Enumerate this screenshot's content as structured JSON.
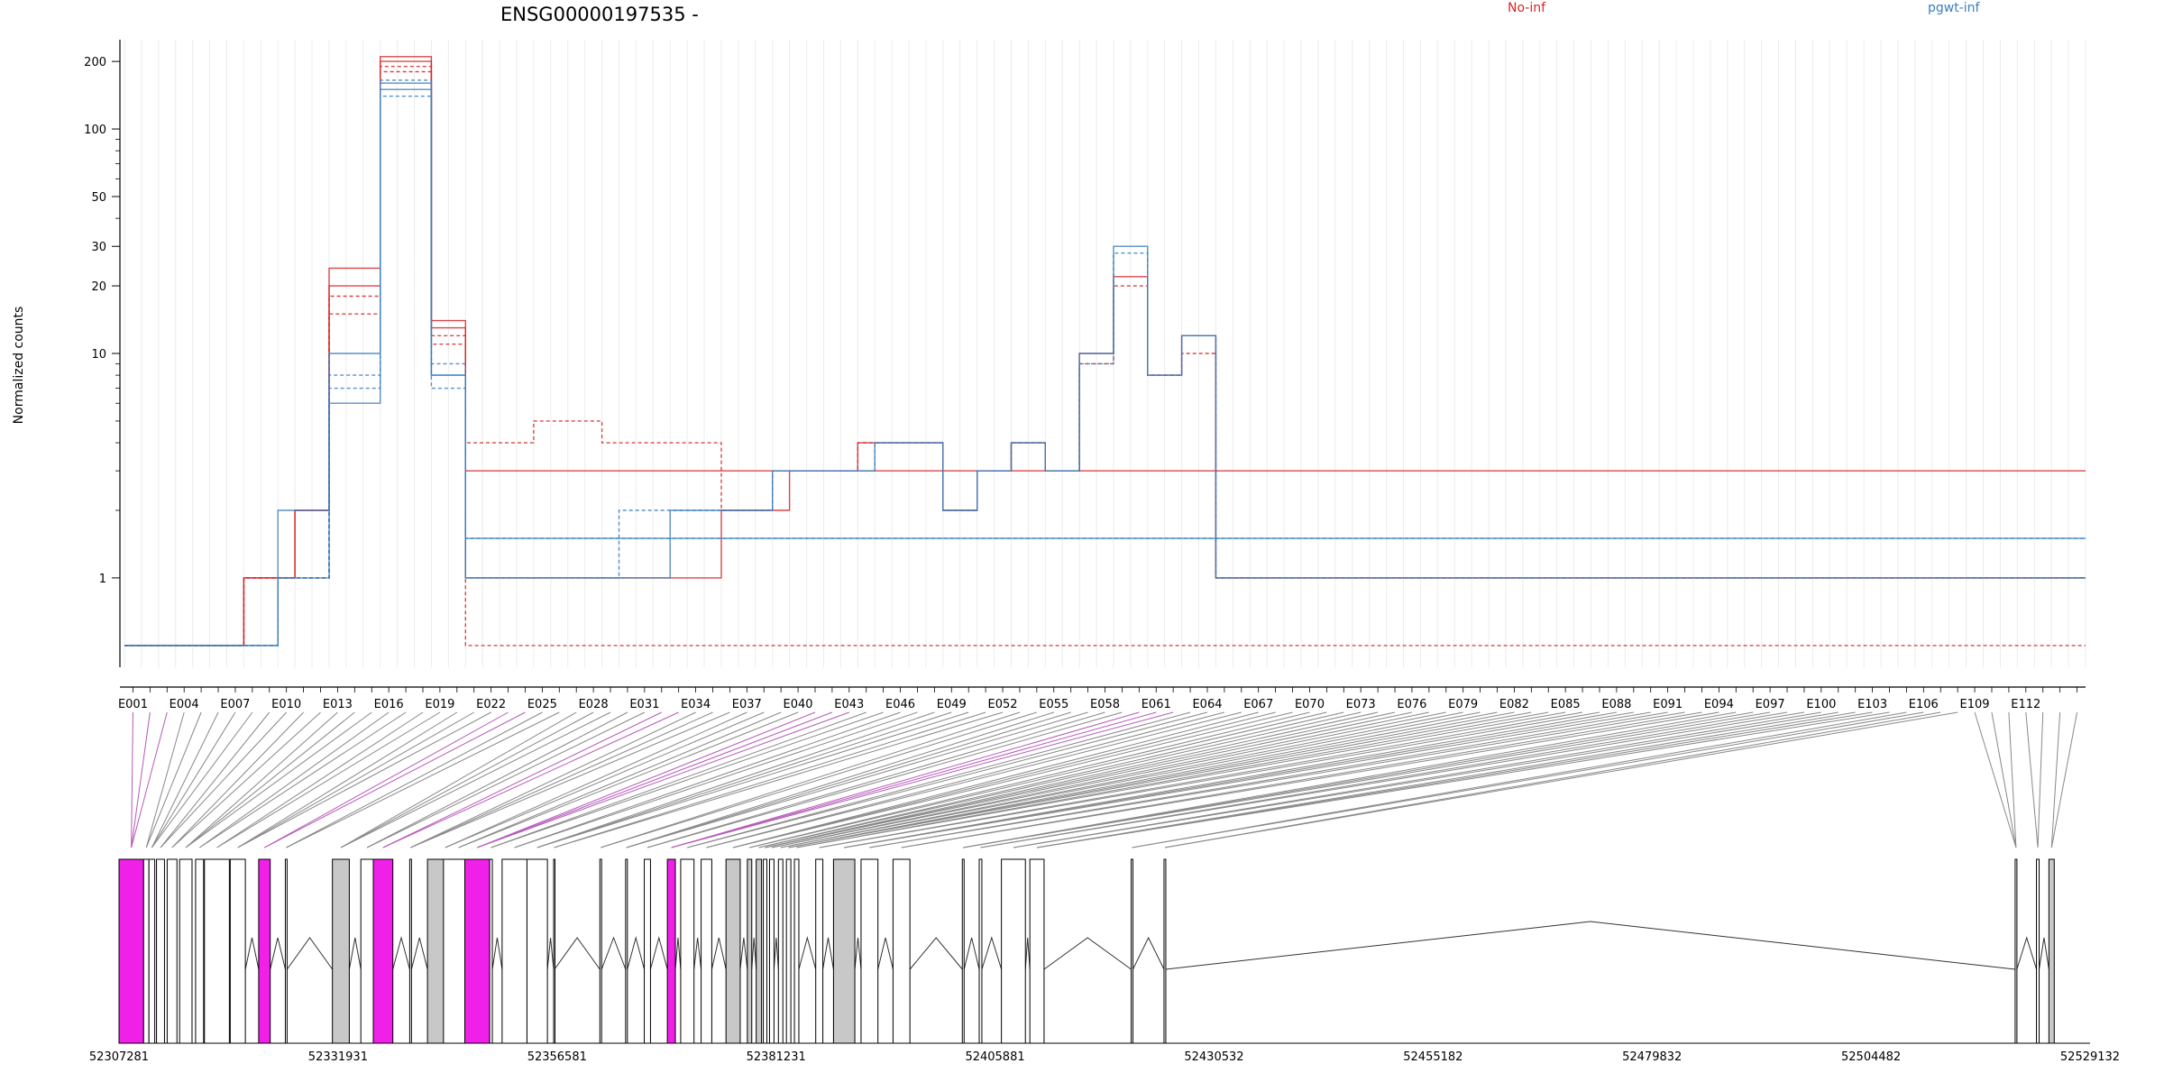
{
  "chart_data": {
    "type": "line",
    "title": "ENSG00000197535 -",
    "xlabel": "",
    "ylabel": "Normalized counts",
    "y_scale": "log",
    "y_ticks": [
      1,
      10,
      20,
      30,
      50,
      100,
      200
    ],
    "exon_labels": [
      "E001",
      "E004",
      "E007",
      "E010",
      "E013",
      "E016",
      "E019",
      "E022",
      "E025",
      "E028",
      "E031",
      "E034",
      "E037",
      "E040",
      "E043",
      "E046",
      "E049",
      "E052",
      "E055",
      "E058",
      "E061",
      "E064",
      "E067",
      "E070",
      "E073",
      "E076",
      "E079",
      "E082",
      "E085",
      "E088",
      "E091",
      "E094",
      "E097",
      "E100",
      "E103",
      "E106",
      "E109",
      "E112"
    ],
    "genomic_ticks": [
      "52307281",
      "52331931",
      "52356581",
      "52381231",
      "52405881",
      "52430532",
      "52455182",
      "52479832",
      "52504482",
      "52529132"
    ],
    "legend": {
      "position": "top-right"
    },
    "colors": {
      "No-inf": "#d62728",
      "pgwt-inf": "#3a7ebf",
      "highlight_exon": "#f020e8",
      "grey_exon": "#c8c8c8"
    },
    "n_bins": 115,
    "series": [
      {
        "name": "No-inf",
        "color": "#d62728",
        "replicates": [
          [
            0.5,
            0.5,
            0.5,
            0.5,
            0.5,
            0.5,
            0.5,
            1,
            1,
            1,
            2,
            2,
            20,
            20,
            20,
            200,
            200,
            200,
            13,
            13,
            1,
            1,
            1,
            1,
            1,
            1,
            1,
            1,
            1,
            1,
            1,
            1,
            1,
            1,
            1,
            2,
            2,
            2,
            2,
            3,
            3,
            3,
            3,
            4,
            4,
            4,
            4,
            4,
            2,
            2,
            3,
            3,
            4,
            4,
            3,
            3,
            10,
            10,
            22,
            22,
            8,
            8,
            12,
            12,
            1,
            1,
            1,
            1,
            1,
            1,
            1,
            1,
            1,
            1,
            1,
            1,
            1,
            1,
            1,
            1,
            1,
            1,
            1,
            1,
            1,
            1,
            1,
            1,
            1,
            1,
            1,
            1,
            1,
            1,
            1,
            1,
            1,
            1,
            1,
            1,
            1,
            1,
            1,
            1,
            1,
            1,
            1,
            1,
            1,
            1,
            1,
            1,
            1,
            1,
            1
          ],
          [
            0.5,
            0.5,
            0.5,
            0.5,
            0.5,
            0.5,
            0.5,
            1,
            1,
            1,
            1,
            1,
            15,
            15,
            15,
            180,
            180,
            180,
            11,
            11,
            4,
            4,
            4,
            4,
            5,
            5,
            5,
            5,
            4,
            4,
            4,
            4,
            4,
            4,
            4,
            2,
            2,
            2,
            3,
            3,
            3,
            3,
            3,
            4,
            4,
            4,
            4,
            4,
            2,
            2,
            3,
            3,
            4,
            4,
            3,
            3,
            9,
            9,
            20,
            20,
            8,
            8,
            10,
            10,
            1,
            1,
            1,
            1,
            1,
            1,
            1,
            1,
            1,
            1,
            1,
            1,
            1,
            1,
            1,
            1,
            1,
            1,
            1,
            1,
            1,
            1,
            1,
            1,
            1,
            1,
            1,
            1,
            1,
            1,
            1,
            1,
            1,
            1,
            1,
            1,
            1,
            1,
            1,
            1,
            1,
            1,
            1,
            1,
            1,
            1,
            1,
            1,
            1,
            1,
            1
          ],
          [
            0.5,
            0.5,
            0.5,
            0.5,
            0.5,
            0.5,
            0.5,
            1,
            1,
            1,
            2,
            2,
            24,
            24,
            24,
            210,
            210,
            210,
            14,
            14,
            3,
            3,
            3,
            3,
            3,
            3,
            3,
            3,
            3,
            3,
            3,
            3,
            3,
            3,
            3,
            3,
            3,
            3,
            3,
            3,
            3,
            3,
            3,
            3,
            3,
            3,
            3,
            3,
            3,
            3,
            3,
            3,
            3,
            3,
            3,
            3,
            3,
            3,
            3,
            3,
            3,
            3,
            3,
            3,
            3,
            3,
            3,
            3,
            3,
            3,
            3,
            3,
            3,
            3,
            3,
            3,
            3,
            3,
            3,
            3,
            3,
            3,
            3,
            3,
            3,
            3,
            3,
            3,
            3,
            3,
            3,
            3,
            3,
            3,
            3,
            3,
            3,
            3,
            3,
            3,
            3,
            3,
            3,
            3,
            3,
            3,
            3,
            3,
            3,
            3,
            3,
            3,
            3,
            3,
            3
          ],
          [
            0.5,
            0.5,
            0.5,
            0.5,
            0.5,
            0.5,
            0.5,
            1,
            1,
            1,
            1,
            1,
            18,
            18,
            18,
            190,
            190,
            190,
            12,
            12,
            0.5,
            0.5,
            0.5,
            0.5,
            0.5,
            0.5,
            0.5,
            0.5,
            0.5,
            0.5,
            0.5,
            0.5,
            0.5,
            0.5,
            0.5,
            0.5,
            0.5,
            0.5,
            0.5,
            0.5,
            0.5,
            0.5,
            0.5,
            0.5,
            0.5,
            0.5,
            0.5,
            0.5,
            0.5,
            0.5,
            0.5,
            0.5,
            0.5,
            0.5,
            0.5,
            0.5,
            0.5,
            0.5,
            0.5,
            0.5,
            0.5,
            0.5,
            0.5,
            0.5,
            0.5,
            0.5,
            0.5,
            0.5,
            0.5,
            0.5,
            0.5,
            0.5,
            0.5,
            0.5,
            0.5,
            0.5,
            0.5,
            0.5,
            0.5,
            0.5,
            0.5,
            0.5,
            0.5,
            0.5,
            0.5,
            0.5,
            0.5,
            0.5,
            0.5,
            0.5,
            0.5,
            0.5,
            0.5,
            0.5,
            0.5,
            0.5,
            0.5,
            0.5,
            0.5,
            0.5,
            0.5,
            0.5,
            0.5,
            0.5,
            0.5,
            0.5,
            0.5,
            0.5,
            0.5,
            0.5,
            0.5,
            0.5,
            0.5,
            0.5,
            0.5
          ]
        ]
      },
      {
        "name": "pgwt-inf",
        "color": "#3a7ebf",
        "replicates": [
          [
            0.5,
            0.5,
            0.5,
            0.5,
            0.5,
            0.5,
            0.5,
            0.5,
            0.5,
            1,
            1,
            1,
            6,
            6,
            6,
            160,
            160,
            160,
            8,
            8,
            1,
            1,
            1,
            1,
            1,
            1,
            1,
            1,
            1,
            1,
            1,
            1,
            2,
            2,
            2,
            2,
            2,
            2,
            3,
            3,
            3,
            3,
            3,
            3,
            4,
            4,
            4,
            4,
            2,
            2,
            3,
            3,
            4,
            4,
            3,
            3,
            10,
            10,
            30,
            30,
            8,
            8,
            12,
            12,
            1,
            1,
            1,
            1,
            1,
            1,
            1,
            1,
            1,
            1,
            1,
            1,
            1,
            1,
            1,
            1,
            1,
            1,
            1,
            1,
            1,
            1,
            1,
            1,
            1,
            1,
            1,
            1,
            1,
            1,
            1,
            1,
            1,
            1,
            1,
            1,
            1,
            1,
            1,
            1,
            1,
            1,
            1,
            1,
            1,
            1,
            1,
            1,
            1,
            1,
            1
          ],
          [
            0.5,
            0.5,
            0.5,
            0.5,
            0.5,
            0.5,
            0.5,
            0.5,
            0.5,
            1,
            1,
            1,
            8,
            8,
            8,
            140,
            140,
            140,
            7,
            7,
            1,
            1,
            1,
            1,
            1,
            1,
            1,
            1,
            1,
            2,
            2,
            2,
            2,
            2,
            2,
            2,
            2,
            2,
            3,
            3,
            3,
            3,
            3,
            3,
            4,
            4,
            4,
            4,
            2,
            2,
            3,
            3,
            4,
            4,
            3,
            3,
            9,
            9,
            28,
            28,
            8,
            8,
            12,
            12,
            1,
            1,
            1,
            1,
            1,
            1,
            1,
            1,
            1,
            1,
            1,
            1,
            1,
            1,
            1,
            1,
            1,
            1,
            1,
            1,
            1,
            1,
            1,
            1,
            1,
            1,
            1,
            1,
            1,
            1,
            1,
            1,
            1,
            1,
            1,
            1,
            1,
            1,
            1,
            1,
            1,
            1,
            1,
            1,
            1,
            1,
            1,
            1,
            1,
            1,
            1
          ],
          [
            0.5,
            0.5,
            0.5,
            0.5,
            0.5,
            0.5,
            0.5,
            0.5,
            0.5,
            2,
            2,
            2,
            10,
            10,
            10,
            150,
            150,
            150,
            8,
            8,
            1.5,
            1.5,
            1.5,
            1.5,
            1.5,
            1.5,
            1.5,
            1.5,
            1.5,
            1.5,
            1.5,
            1.5,
            1.5,
            1.5,
            1.5,
            1.5,
            1.5,
            1.5,
            1.5,
            1.5,
            1.5,
            1.5,
            1.5,
            1.5,
            1.5,
            1.5,
            1.5,
            1.5,
            1.5,
            1.5,
            1.5,
            1.5,
            1.5,
            1.5,
            1.5,
            1.5,
            1.5,
            1.5,
            1.5,
            1.5,
            1.5,
            1.5,
            1.5,
            1.5,
            1.5,
            1.5,
            1.5,
            1.5,
            1.5,
            1.5,
            1.5,
            1.5,
            1.5,
            1.5,
            1.5,
            1.5,
            1.5,
            1.5,
            1.5,
            1.5,
            1.5,
            1.5,
            1.5,
            1.5,
            1.5,
            1.5,
            1.5,
            1.5,
            1.5,
            1.5,
            1.5,
            1.5,
            1.5,
            1.5,
            1.5,
            1.5,
            1.5,
            1.5,
            1.5,
            1.5,
            1.5,
            1.5,
            1.5,
            1.5,
            1.5,
            1.5,
            1.5,
            1.5,
            1.5,
            1.5,
            1.5,
            1.5,
            1.5,
            1.5,
            1.5
          ],
          [
            0.5,
            0.5,
            0.5,
            0.5,
            0.5,
            0.5,
            0.5,
            0.5,
            0.5,
            1,
            1,
            1,
            7,
            7,
            7,
            165,
            165,
            165,
            9,
            9,
            1.5,
            1.5,
            1.5,
            1.5,
            1.5,
            1.5,
            1.5,
            1.5,
            1.5,
            1.5,
            1.5,
            1.5,
            1.5,
            1.5,
            1.5,
            1.5,
            1.5,
            1.5,
            1.5,
            1.5,
            1.5,
            1.5,
            1.5,
            1.5,
            1.5,
            1.5,
            1.5,
            1.5,
            1.5,
            1.5,
            1.5,
            1.5,
            1.5,
            1.5,
            1.5,
            1.5,
            1.5,
            1.5,
            1.5,
            1.5,
            1.5,
            1.5,
            1.5,
            1.5,
            1.5,
            1.5,
            1.5,
            1.5,
            1.5,
            1.5,
            1.5,
            1.5,
            1.5,
            1.5,
            1.5,
            1.5,
            1.5,
            1.5,
            1.5,
            1.5,
            1.5,
            1.5,
            1.5,
            1.5,
            1.5,
            1.5,
            1.5,
            1.5,
            1.5,
            1.5,
            1.5,
            1.5,
            1.5,
            1.5,
            1.5,
            1.5,
            1.5,
            1.5,
            1.5,
            1.5,
            1.5,
            1.5,
            1.5,
            1.5,
            1.5,
            1.5,
            1.5,
            1.5,
            1.5,
            1.5,
            1.5,
            1.5,
            1.5,
            1.5,
            1.5
          ]
        ]
      }
    ],
    "gene_model": {
      "exon_starts": [
        52307281,
        52310050,
        52310650,
        52311500,
        52312700,
        52314100,
        52315900,
        52316900,
        52319800,
        52323000,
        52326000,
        52331300,
        52334500,
        52335900,
        52340000,
        52342000,
        52343800,
        52346200,
        52349000,
        52350400,
        52353200,
        52356200,
        52361400,
        52364300,
        52366400,
        52369000,
        52370500,
        52372800,
        52375600,
        52378000,
        52379000,
        52379800,
        52380500,
        52381500,
        52382400,
        52383300,
        52385700,
        52387700,
        52390800,
        52394400,
        52402200,
        52404100,
        52406600,
        52409800,
        52421200,
        52424900,
        52520700,
        52523100,
        52524500
      ],
      "exon_ends": [
        52310050,
        52310650,
        52311300,
        52312400,
        52313800,
        52315500,
        52316800,
        52319700,
        52321500,
        52324300,
        52326200,
        52333200,
        52335900,
        52338100,
        52340200,
        52346000,
        52347200,
        52349000,
        52349300,
        52353200,
        52355500,
        52356300,
        52361600,
        52364500,
        52367100,
        52369900,
        52372000,
        52374000,
        52377200,
        52378500,
        52379600,
        52380200,
        52381000,
        52382000,
        52382900,
        52383800,
        52386500,
        52390100,
        52392700,
        52396300,
        52402400,
        52404400,
        52409300,
        52411400,
        52421400,
        52425100,
        52520900,
        52523400,
        52525100
      ],
      "exon_fill": [
        "#f020e8",
        "#ffffff",
        "#ffffff",
        "#ffffff",
        "#ffffff",
        "#ffffff",
        "#ffffff",
        "#ffffff",
        "#ffffff",
        "#f020e8",
        "#ffffff",
        "#c8c8c8",
        "#ffffff",
        "#f020e8",
        "#ffffff",
        "#c8c8c8",
        "#ffffff",
        "#f020e8",
        "#ffffff",
        "#ffffff",
        "#ffffff",
        "#ffffff",
        "#ffffff",
        "#ffffff",
        "#ffffff",
        "#f020e8",
        "#ffffff",
        "#ffffff",
        "#c8c8c8",
        "#c8c8c8",
        "#c8c8c8",
        "#ffffff",
        "#ffffff",
        "#ffffff",
        "#ffffff",
        "#ffffff",
        "#ffffff",
        "#c8c8c8",
        "#ffffff",
        "#ffffff",
        "#ffffff",
        "#ffffff",
        "#ffffff",
        "#ffffff",
        "#ffffff",
        "#ffffff",
        "#ffffff",
        "#ffffff",
        "#c8c8c8"
      ]
    }
  },
  "legend_labels": [
    "No-inf",
    "pgwt-inf"
  ]
}
